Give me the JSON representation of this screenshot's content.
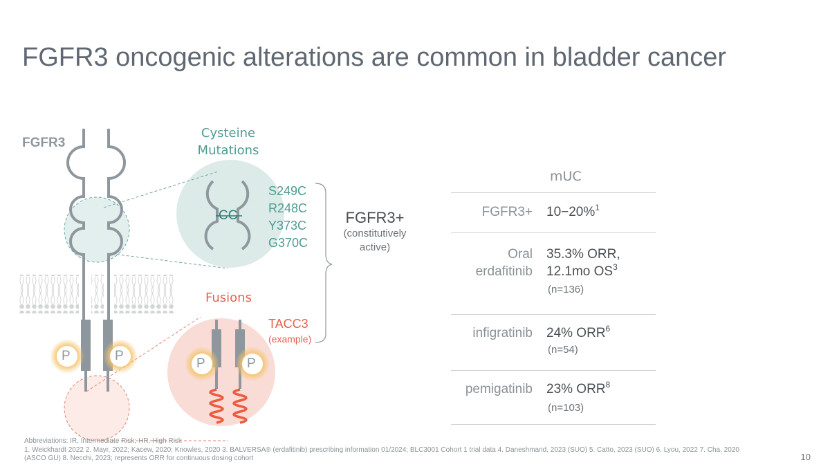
{
  "title": "FGFR3 oncogenic alterations are common in bladder cancer",
  "diagram": {
    "receptor_label": "FGFR3",
    "cysteine_title_1": "Cysteine",
    "cysteine_title_2": "Mutations",
    "cc_label": "CC",
    "mutations": [
      "S249C",
      "R248C",
      "Y373C",
      "G370C"
    ],
    "fusions_title": "Fusions",
    "fusion_partner": "TACC3",
    "fusion_note": "(example)",
    "phospho_label": "P",
    "result_label": "FGFR3+",
    "result_note_1": "(constitutively",
    "result_note_2": "active)",
    "colors": {
      "teal": "#4e9b93",
      "coral": "#e8604c",
      "gray": "#8f979e"
    }
  },
  "table": {
    "column_header": "mUC",
    "rows": [
      {
        "label": "FGFR3+",
        "value": "10−20%",
        "sup": "1"
      },
      {
        "label_1": "Oral",
        "label_2": "erdafitinib",
        "value_1": "35.3% ORR,",
        "value_2": "12.1mo OS",
        "sup": "3",
        "n": "(n=136)"
      },
      {
        "label": "infigratinib",
        "value": "24% ORR",
        "sup": "6",
        "n": "(n=54)"
      },
      {
        "label": "pemigatinib",
        "value": "23% ORR",
        "sup": "8",
        "n": "(n=103)"
      }
    ]
  },
  "footnotes": {
    "abbreviations": "Abbreviations: IR, Intermediate Risk; HR, High Risk",
    "references": "1. Weickhardt 2022 2. Mayr, 2022; Kacew, 2020; Knowles, 2020 3. BALVERSA® (erdafitinib) prescribing information 01/2024; BLC3001 Cohort 1 trial data 4. Daneshmand, 2023 (SUO) 5. Catto, 2023 (SUO) 6. Lyou, 2022 7. Cha, 2020 (ASCO GU) 8. Necchi, 2023; represents ORR for continuous dosing cohort"
  },
  "page_number": "10"
}
